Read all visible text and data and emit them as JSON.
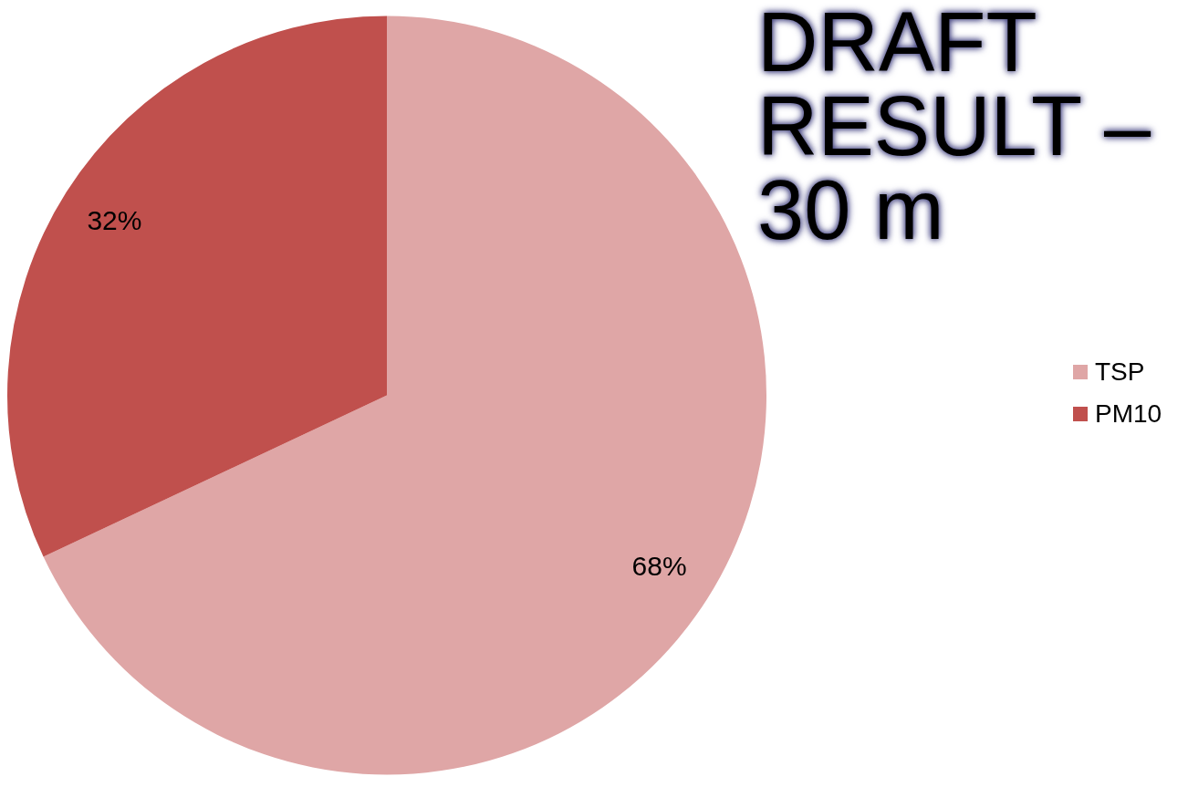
{
  "chart_data": {
    "type": "pie",
    "title": "DRAFT RESULT – 30 m",
    "categories": [
      "TSP",
      "PM10"
    ],
    "values": [
      68,
      32
    ],
    "colors": [
      "#dfa6a6",
      "#c0504d"
    ],
    "value_labels": [
      "68%",
      "32%"
    ],
    "legend": "right"
  }
}
